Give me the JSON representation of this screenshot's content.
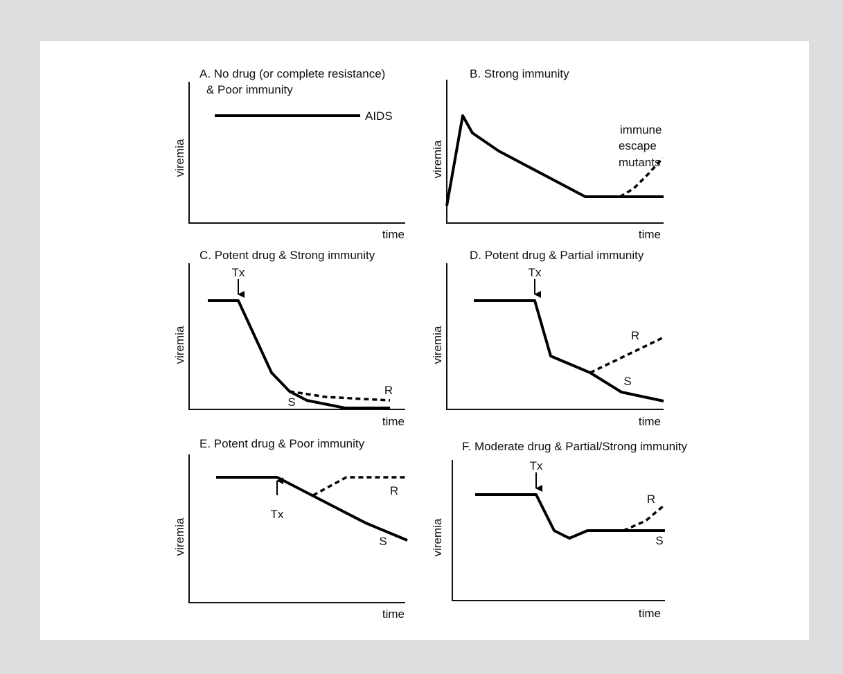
{
  "panels": {
    "a": {
      "title_1": "A. No drug (or complete resistance)",
      "title_2": "& Poor immunity",
      "ylabel": "viremia",
      "xlabel": "time",
      "line_label": "AIDS"
    },
    "b": {
      "title": "B. Strong immunity",
      "ylabel": "viremia",
      "xlabel": "time",
      "note_1": "immune",
      "note_2": "escape",
      "note_3": "mutants"
    },
    "c": {
      "title": "C. Potent drug & Strong immunity",
      "ylabel": "viremia",
      "xlabel": "time",
      "tx": "Tx",
      "r": "R",
      "s": "S"
    },
    "d": {
      "title": "D. Potent drug & Partial immunity",
      "ylabel": "viremia",
      "xlabel": "time",
      "tx": "Tx",
      "r": "R",
      "s": "S"
    },
    "e": {
      "title": "E. Potent drug & Poor immunity",
      "ylabel": "viremia",
      "xlabel": "time",
      "tx": "Tx",
      "r": "R",
      "s": "S"
    },
    "f": {
      "title": "F.  Moderate drug & Partial/Strong immunity",
      "ylabel": "viremia",
      "xlabel": "time",
      "tx": "Tx",
      "r": "R",
      "s": "S"
    }
  },
  "colors": {
    "background": "#dcdddf",
    "panel": "#ffffff",
    "ink": "#000000"
  }
}
